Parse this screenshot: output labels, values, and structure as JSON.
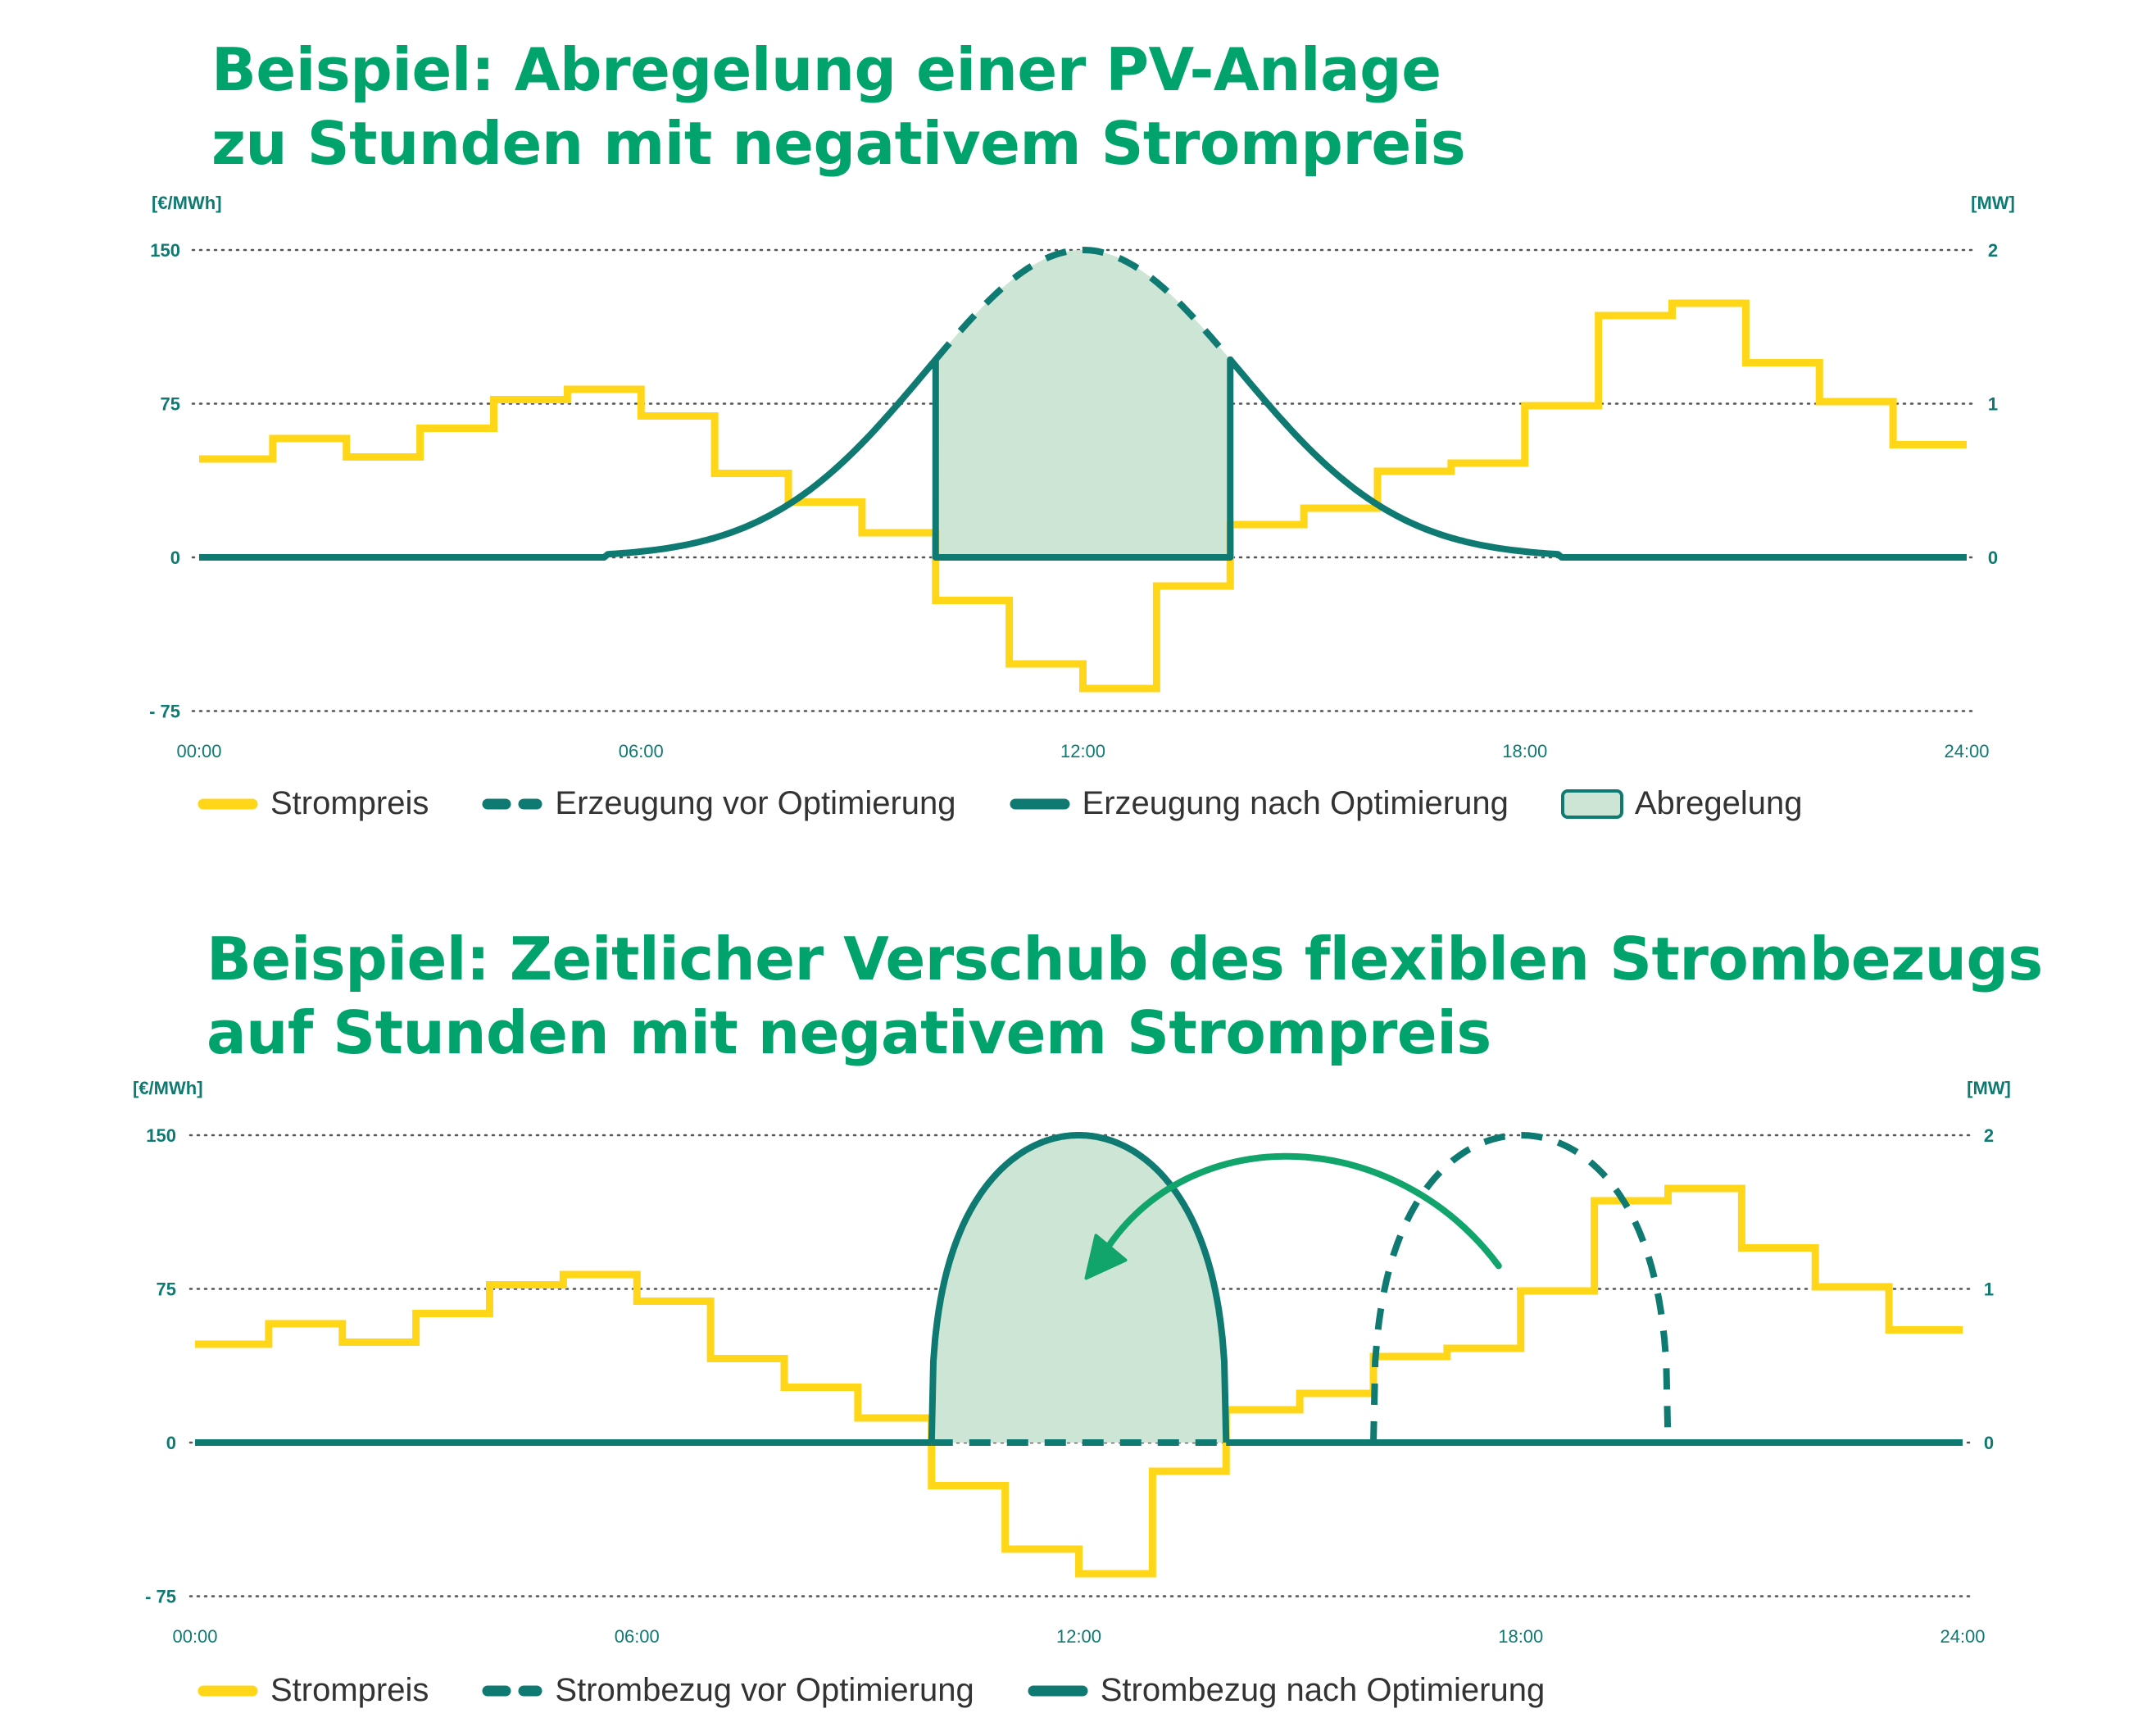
{
  "colors": {
    "price": "#ffd618",
    "generation": "#0f7a72",
    "fill": "#cde5d4",
    "title": "#00a36c",
    "arrow": "#11a46b",
    "axis_text": "#0f7a72",
    "grid": "#555555"
  },
  "chart_data": [
    {
      "type": "line",
      "title_lines": [
        "Beispiel: Abregelung einer PV-Anlage",
        "zu Stunden mit negativem Strompreis"
      ],
      "y_left_unit": "[€/MWh]",
      "y_right_unit": "[MW]",
      "ylim_left": [
        -75,
        150
      ],
      "ylim_right": [
        -1,
        2
      ],
      "y_left_ticks": [
        "150",
        "75",
        "0",
        "- 75"
      ],
      "y_right_ticks": [
        "2",
        "1",
        "0"
      ],
      "x_ticks": [
        "00:00",
        "06:00",
        "12:00",
        "18:00",
        "24:00"
      ],
      "xlim_hours": [
        0,
        24
      ],
      "grid": "dotted horizontal",
      "series": [
        {
          "name": "Strompreis",
          "axis": "left",
          "style": "step",
          "hour_start": 0,
          "values": [
            48,
            58,
            49,
            63,
            77,
            82,
            69,
            41,
            27,
            12,
            -21,
            -52,
            -64,
            -14,
            16,
            24,
            42,
            46,
            74,
            118,
            124,
            95,
            76,
            55
          ]
        },
        {
          "name": "Erzeugung vor Optimierung",
          "axis": "right",
          "style": "dashed",
          "peak_mw": 2.0,
          "peak_hour": 12,
          "start_hour": 5.5,
          "end_hour": 18.5
        },
        {
          "name": "Erzeugung nach Optimierung",
          "axis": "right",
          "style": "solid",
          "curtail_from_hour": 10,
          "curtail_to_hour": 14
        },
        {
          "name": "Abregelung",
          "style": "filled area",
          "from_hour": 10,
          "to_hour": 14
        }
      ]
    },
    {
      "type": "line",
      "title_lines": [
        "Beispiel: Zeitlicher Verschub des flexiblen Strombezugs",
        "auf Stunden mit negativem Strompreis"
      ],
      "y_left_unit": "[€/MWh]",
      "y_right_unit": "[MW]",
      "ylim_left": [
        -75,
        150
      ],
      "ylim_right": [
        -1,
        2
      ],
      "y_left_ticks": [
        "150",
        "75",
        "0",
        "- 75"
      ],
      "y_right_ticks": [
        "2",
        "1",
        "0"
      ],
      "x_ticks": [
        "00:00",
        "06:00",
        "12:00",
        "18:00",
        "24:00"
      ],
      "xlim_hours": [
        0,
        24
      ],
      "grid": "dotted horizontal",
      "series": [
        {
          "name": "Strompreis",
          "axis": "left",
          "style": "step",
          "hour_start": 0,
          "values": [
            48,
            58,
            49,
            63,
            77,
            82,
            69,
            41,
            27,
            12,
            -21,
            -52,
            -64,
            -14,
            16,
            24,
            42,
            46,
            74,
            118,
            124,
            95,
            76,
            55
          ]
        },
        {
          "name": "Strombezug vor Optimierung",
          "axis": "right",
          "style": "dashed",
          "peak_mw": 2.0,
          "start_hour": 16,
          "end_hour": 20
        },
        {
          "name": "Strombezug nach Optimierung",
          "axis": "right",
          "style": "solid",
          "peak_mw": 2.0,
          "start_hour": 10,
          "end_hour": 14
        }
      ],
      "annotation": "arrow from evening load block to midday block"
    }
  ],
  "legend1": [
    {
      "label": "Strompreis",
      "swatch": "price"
    },
    {
      "label": "Erzeugung vor Optimierung",
      "swatch": "dashed"
    },
    {
      "label": "Erzeugung nach Optimierung",
      "swatch": "solid"
    },
    {
      "label": "Abregelung",
      "swatch": "fill"
    }
  ],
  "legend2": [
    {
      "label": "Strompreis",
      "swatch": "price"
    },
    {
      "label": "Strombezug vor Optimierung",
      "swatch": "dashed"
    },
    {
      "label": "Strombezug nach Optimierung",
      "swatch": "solid"
    }
  ]
}
